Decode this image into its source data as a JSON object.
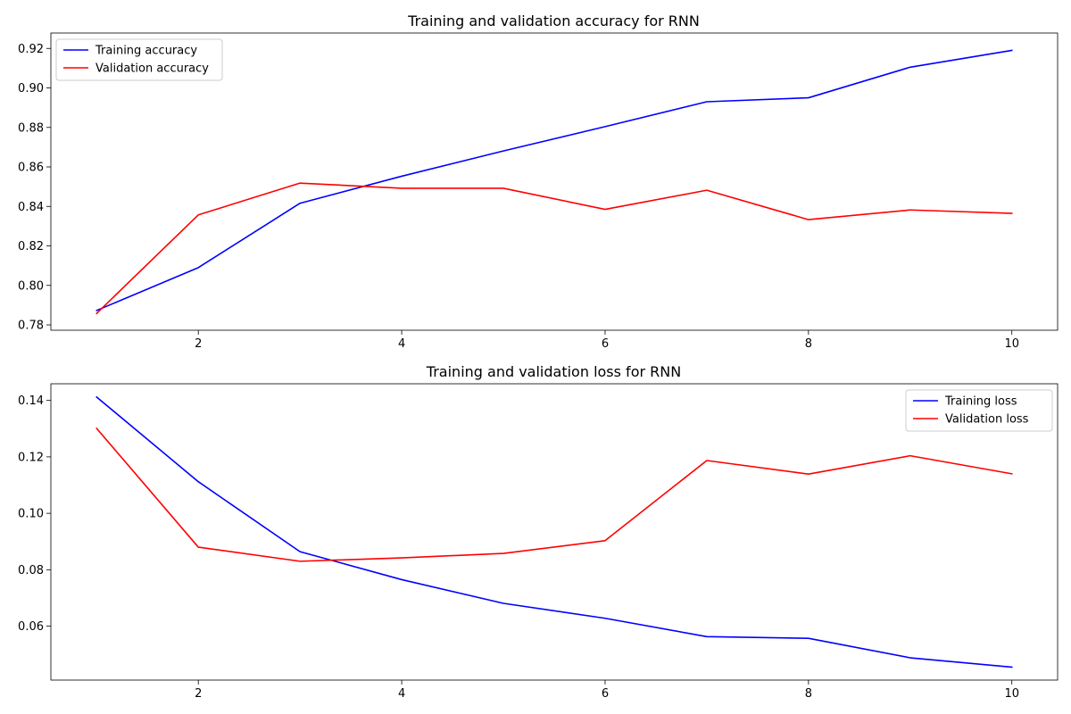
{
  "chart_data": [
    {
      "type": "line",
      "title": "Training and validation accuracy for RNN",
      "xlabel": "",
      "ylabel": "",
      "x": [
        1,
        2,
        3,
        4,
        5,
        6,
        7,
        8,
        9,
        10
      ],
      "xlim": [
        0.55,
        10.45
      ],
      "ylim": [
        0.7773,
        0.9278
      ],
      "xticks": [
        2,
        4,
        6,
        8,
        10
      ],
      "xtick_labels": [
        "2",
        "4",
        "6",
        "8",
        "10"
      ],
      "yticks": [
        0.78,
        0.8,
        0.82,
        0.84,
        0.86,
        0.88,
        0.9,
        0.92
      ],
      "ytick_labels": [
        "0.78",
        "0.80",
        "0.82",
        "0.84",
        "0.86",
        "0.88",
        "0.90",
        "0.92"
      ],
      "grid": false,
      "legend_position": "top-left",
      "series": [
        {
          "name": "Training accuracy",
          "color": "#0000ff",
          "values": [
            0.7873,
            0.809,
            0.8416,
            0.8553,
            0.8681,
            0.8804,
            0.893,
            0.895,
            0.9105,
            0.919
          ]
        },
        {
          "name": "Validation accuracy",
          "color": "#ff0000",
          "values": [
            0.7858,
            0.8357,
            0.8518,
            0.8492,
            0.8492,
            0.8385,
            0.8482,
            0.8333,
            0.8382,
            0.8365
          ]
        }
      ]
    },
    {
      "type": "line",
      "title": "Training and validation loss for RNN",
      "xlabel": "",
      "ylabel": "",
      "x": [
        1,
        2,
        3,
        4,
        5,
        6,
        7,
        8,
        9,
        10
      ],
      "xlim": [
        0.55,
        10.45
      ],
      "ylim": [
        0.0409,
        0.1459
      ],
      "xticks": [
        2,
        4,
        6,
        8,
        10
      ],
      "xtick_labels": [
        "2",
        "4",
        "6",
        "8",
        "10"
      ],
      "yticks": [
        0.06,
        0.08,
        0.1,
        0.12,
        0.14
      ],
      "ytick_labels": [
        "0.06",
        "0.08",
        "0.10",
        "0.12",
        "0.14"
      ],
      "grid": false,
      "legend_position": "top-right",
      "series": [
        {
          "name": "Training loss",
          "color": "#0000ff",
          "values": [
            0.1412,
            0.1112,
            0.0864,
            0.0765,
            0.0681,
            0.0628,
            0.0563,
            0.0557,
            0.0488,
            0.0455
          ]
        },
        {
          "name": "Validation loss",
          "color": "#ff0000",
          "values": [
            0.1301,
            0.088,
            0.083,
            0.0842,
            0.0858,
            0.0903,
            0.1187,
            0.1139,
            0.1204,
            0.114
          ]
        }
      ]
    }
  ]
}
